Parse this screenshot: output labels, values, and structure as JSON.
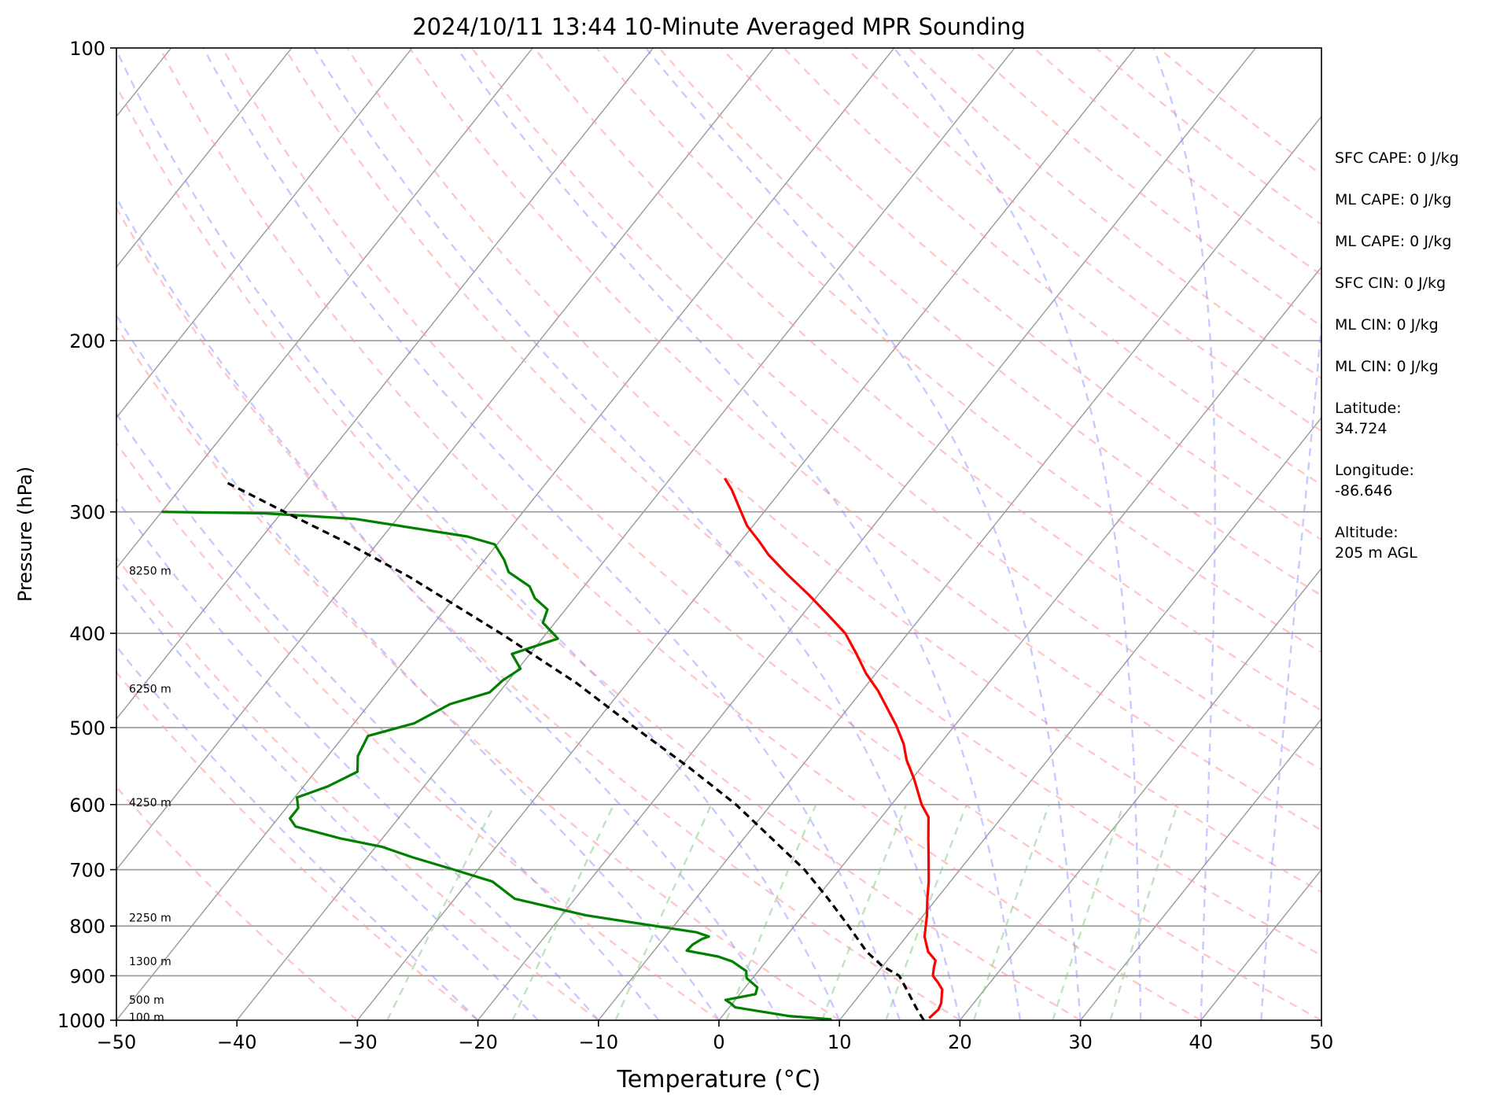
{
  "chart_data": {
    "type": "skew-t",
    "title": "2024/10/11 13:44 10-Minute Averaged MPR Sounding",
    "xlabel": "Temperature (°C)",
    "ylabel": "Pressure (hPa)",
    "xlim": [
      -50,
      50
    ],
    "ylim": [
      1000,
      100
    ],
    "x_ticks": [
      -50,
      -40,
      -30,
      -20,
      -10,
      0,
      10,
      20,
      30,
      40,
      50
    ],
    "x_tick_labels": [
      "−50",
      "−40",
      "−30",
      "−20",
      "−10",
      "0",
      "10",
      "20",
      "30",
      "40",
      "50"
    ],
    "y_ticks": [
      100,
      200,
      300,
      400,
      500,
      600,
      700,
      800,
      900,
      1000
    ],
    "y_tick_labels": [
      "100",
      "200",
      "300",
      "400",
      "500",
      "600",
      "700",
      "800",
      "900",
      "1000"
    ],
    "grid": true,
    "colors": {
      "temperature": "#ff0000",
      "dewpoint": "#008000",
      "parcel": "#000000",
      "dry_adiabats": "#ff9999",
      "moist_adiabats": "#8888ff",
      "mixing_ratio": "#88cc88",
      "isotherms": "#999999"
    },
    "height_labels": [
      {
        "text": "8250 m",
        "p": 345
      },
      {
        "text": "6250 m",
        "p": 456
      },
      {
        "text": "4250 m",
        "p": 597
      },
      {
        "text": "2250 m",
        "p": 784
      },
      {
        "text": "1300 m",
        "p": 870
      },
      {
        "text": "500 m",
        "p": 953
      },
      {
        "text": "100 m",
        "p": 993
      }
    ],
    "series": [
      {
        "key": "temperature",
        "points": [
          [
            17.3,
            995
          ],
          [
            17.5,
            975
          ],
          [
            17.3,
            960
          ],
          [
            16.9,
            945
          ],
          [
            16.5,
            930
          ],
          [
            15.7,
            915
          ],
          [
            14.8,
            900
          ],
          [
            14.4,
            885
          ],
          [
            14.0,
            868
          ],
          [
            12.8,
            850
          ],
          [
            11.5,
            820
          ],
          [
            10.3,
            780
          ],
          [
            9.3,
            752
          ],
          [
            8.2,
            720
          ],
          [
            6.8,
            685
          ],
          [
            5.3,
            650
          ],
          [
            3.9,
            618
          ],
          [
            2.5,
            600
          ],
          [
            0.2,
            565
          ],
          [
            -1.7,
            540
          ],
          [
            -3.0,
            520
          ],
          [
            -4.9,
            497
          ],
          [
            -7.0,
            475
          ],
          [
            -8.7,
            458
          ],
          [
            -10.8,
            440
          ],
          [
            -12.9,
            420
          ],
          [
            -15.2,
            400
          ],
          [
            -18.0,
            382
          ],
          [
            -20.8,
            365
          ],
          [
            -23.9,
            348
          ],
          [
            -26.8,
            332
          ],
          [
            -28.4,
            322
          ],
          [
            -30.5,
            310
          ],
          [
            -32.2,
            298
          ],
          [
            -34.1,
            285
          ],
          [
            -35.5,
            277
          ]
        ]
      },
      {
        "key": "dewpoint",
        "points": [
          [
            9.3,
            998
          ],
          [
            5.5,
            990
          ],
          [
            0.5,
            970
          ],
          [
            -0.2,
            960
          ],
          [
            -0.8,
            953
          ],
          [
            1.3,
            940
          ],
          [
            1.0,
            925
          ],
          [
            -0.5,
            905
          ],
          [
            -1.0,
            890
          ],
          [
            -2.8,
            870
          ],
          [
            -4.3,
            860
          ],
          [
            -7.3,
            848
          ],
          [
            -7.2,
            836
          ],
          [
            -6.8,
            825
          ],
          [
            -6.4,
            820
          ],
          [
            -7.7,
            812
          ],
          [
            -18.0,
            780
          ],
          [
            -25.0,
            750
          ],
          [
            -28.0,
            720
          ],
          [
            -32.0,
            700
          ],
          [
            -36.2,
            680
          ],
          [
            -39.5,
            663
          ],
          [
            -43.5,
            650
          ],
          [
            -48.0,
            632
          ],
          [
            -49.0,
            620
          ],
          [
            -49.0,
            605
          ],
          [
            -49.8,
            590
          ],
          [
            -48.0,
            575
          ],
          [
            -46.5,
            555
          ],
          [
            -47.5,
            535
          ],
          [
            -48.0,
            510
          ],
          [
            -45.0,
            495
          ],
          [
            -43.3,
            473
          ],
          [
            -40.8,
            460
          ],
          [
            -40.5,
            447
          ],
          [
            -39.8,
            435
          ],
          [
            -41.5,
            420
          ],
          [
            -38.7,
            405
          ],
          [
            -41.0,
            390
          ],
          [
            -41.5,
            378
          ],
          [
            -43.3,
            368
          ],
          [
            -44.5,
            358
          ],
          [
            -47.2,
            346
          ],
          [
            -48.4,
            336
          ],
          [
            -50.2,
            324
          ],
          [
            -53.0,
            318
          ],
          [
            -63.5,
            305
          ],
          [
            -71.4,
            301
          ],
          [
            -80.0,
            300
          ]
        ]
      },
      {
        "key": "parcel",
        "points": [
          [
            17.0,
            1000
          ],
          [
            15.5,
            970
          ],
          [
            13.8,
            935
          ],
          [
            12.0,
            900
          ],
          [
            10.0,
            880
          ],
          [
            7.7,
            850
          ],
          [
            4.5,
            800
          ],
          [
            1.0,
            750
          ],
          [
            -2.9,
            700
          ],
          [
            -7.7,
            650
          ],
          [
            -12.9,
            600
          ],
          [
            -19.2,
            550
          ],
          [
            -26.4,
            500
          ],
          [
            -34.2,
            450
          ],
          [
            -43.8,
            400
          ],
          [
            -55.1,
            350
          ],
          [
            -63.4,
            320
          ],
          [
            -69.8,
            300
          ],
          [
            -76.5,
            280
          ]
        ]
      }
    ]
  },
  "info_panel": [
    "SFC CAPE: 0 J/kg",
    "ML CAPE: 0 J/kg",
    "ML CAPE: 0 J/kg",
    "SFC CIN: 0 J/kg",
    "ML CIN: 0 J/kg",
    "ML CIN: 0 J/kg",
    "Latitude:\n34.724",
    "Longitude:\n-86.646",
    "Altitude:\n205 m AGL"
  ]
}
